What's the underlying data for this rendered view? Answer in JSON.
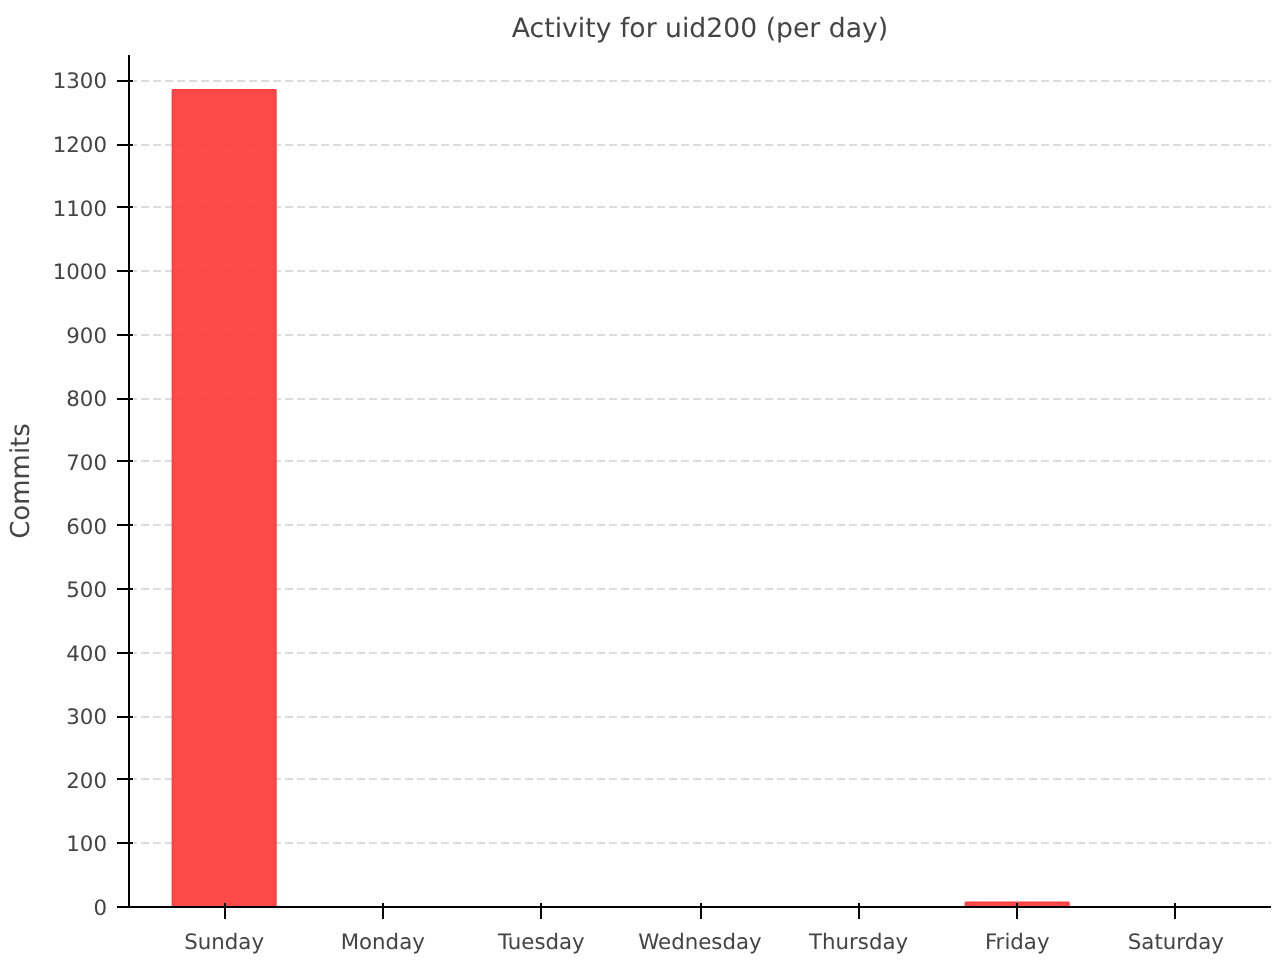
{
  "chart_data": {
    "type": "bar",
    "title": "Activity for uid200 (per day)",
    "ylabel": "Commits",
    "categories": [
      "Sunday",
      "Monday",
      "Tuesday",
      "Wednesday",
      "Thursday",
      "Friday",
      "Saturday"
    ],
    "values": [
      1285,
      0,
      0,
      0,
      0,
      7,
      0
    ],
    "color": "#ff4040",
    "ylim": [
      0,
      1340
    ],
    "yticks": [
      0,
      100,
      200,
      300,
      400,
      500,
      600,
      700,
      800,
      900,
      1000,
      1100,
      1200,
      1300
    ],
    "grid": "y"
  }
}
